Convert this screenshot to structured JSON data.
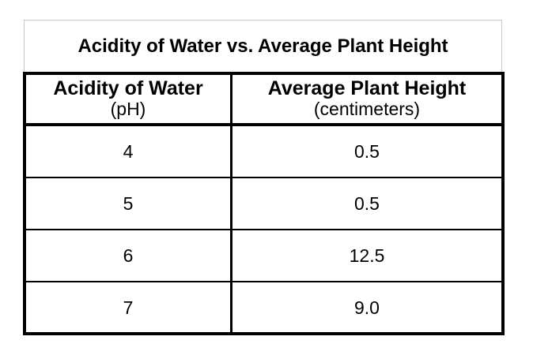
{
  "table": {
    "title": "Acidity of Water vs. Average Plant Height",
    "headers": [
      {
        "main": "Acidity of Water",
        "unit": "(pH)"
      },
      {
        "main": "Average Plant Height",
        "unit": "(centimeters)"
      }
    ],
    "rows": [
      {
        "ph": "4",
        "height": "0.5"
      },
      {
        "ph": "5",
        "height": "0.5"
      },
      {
        "ph": "6",
        "height": "12.5"
      },
      {
        "ph": "7",
        "height": "9.0"
      }
    ]
  }
}
